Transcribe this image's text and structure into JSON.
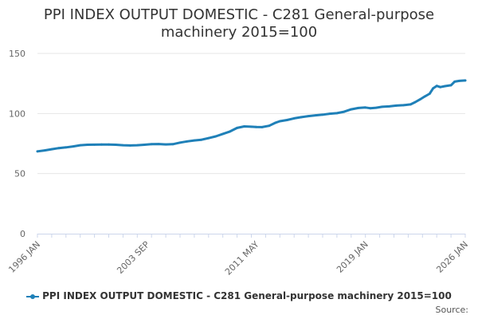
{
  "title_lines": [
    "PPI INDEX OUTPUT DOMESTIC - C281 General-purpose",
    "machinery 2015=100"
  ],
  "source_label": "Source:",
  "colors": {
    "series": "#1f80b8",
    "grid": "#e6e6e6",
    "axis": "#ccd6eb",
    "text": "#333333",
    "tick_text": "#666666"
  },
  "chart_data": {
    "type": "line",
    "title": "PPI INDEX OUTPUT DOMESTIC - C281 General-purpose machinery 2015=100",
    "xlabel": "",
    "ylabel": "",
    "x_range": [
      "1996-01",
      "2026-01"
    ],
    "ylim": [
      0,
      150
    ],
    "y_ticks": [
      0,
      50,
      100,
      150
    ],
    "x_tick_labels": [
      {
        "label": "1996 JAN",
        "date": "1996-01"
      },
      {
        "label": "2003 SEP",
        "date": "2003-09"
      },
      {
        "label": "2011 MAY",
        "date": "2011-05"
      },
      {
        "label": "2019 JAN",
        "date": "2019-01"
      },
      {
        "label": "2026 JAN",
        "date": "2026-01"
      }
    ],
    "grid": true,
    "legend": "bottom",
    "series": [
      {
        "name": "PPI INDEX OUTPUT DOMESTIC - C281 General-purpose machinery 2015=100",
        "points": [
          [
            "1996-01",
            68.5
          ],
          [
            "1996-07",
            69.3
          ],
          [
            "1997-01",
            70.3
          ],
          [
            "1997-07",
            71.2
          ],
          [
            "1998-01",
            71.8
          ],
          [
            "1998-07",
            72.6
          ],
          [
            "1999-01",
            73.6
          ],
          [
            "1999-07",
            74.0
          ],
          [
            "2000-01",
            74.1
          ],
          [
            "2000-07",
            74.2
          ],
          [
            "2001-01",
            74.2
          ],
          [
            "2001-07",
            74.0
          ],
          [
            "2002-01",
            73.6
          ],
          [
            "2002-07",
            73.4
          ],
          [
            "2003-01",
            73.6
          ],
          [
            "2003-07",
            74.0
          ],
          [
            "2004-01",
            74.5
          ],
          [
            "2004-07",
            74.6
          ],
          [
            "2005-01",
            74.3
          ],
          [
            "2005-07",
            74.5
          ],
          [
            "2006-01",
            75.8
          ],
          [
            "2006-07",
            76.8
          ],
          [
            "2007-01",
            77.6
          ],
          [
            "2007-07",
            78.2
          ],
          [
            "2008-01",
            79.5
          ],
          [
            "2008-07",
            81.0
          ],
          [
            "2009-01",
            83.0
          ],
          [
            "2009-07",
            85.0
          ],
          [
            "2010-01",
            88.0
          ],
          [
            "2010-07",
            89.3
          ],
          [
            "2011-01",
            89.0
          ],
          [
            "2011-05",
            88.8
          ],
          [
            "2011-10",
            88.7
          ],
          [
            "2012-04",
            89.8
          ],
          [
            "2012-09",
            92.2
          ],
          [
            "2013-01",
            93.6
          ],
          [
            "2013-07",
            94.6
          ],
          [
            "2014-01",
            96.0
          ],
          [
            "2014-07",
            97.0
          ],
          [
            "2015-01",
            97.8
          ],
          [
            "2015-07",
            98.5
          ],
          [
            "2016-01",
            99.0
          ],
          [
            "2016-07",
            99.8
          ],
          [
            "2017-01",
            100.3
          ],
          [
            "2017-07",
            101.5
          ],
          [
            "2018-01",
            103.5
          ],
          [
            "2018-07",
            104.6
          ],
          [
            "2019-01",
            105.0
          ],
          [
            "2019-05",
            104.4
          ],
          [
            "2019-10",
            104.8
          ],
          [
            "2020-03",
            105.6
          ],
          [
            "2020-09",
            105.9
          ],
          [
            "2021-03",
            106.6
          ],
          [
            "2021-09",
            106.9
          ],
          [
            "2022-03",
            107.6
          ],
          [
            "2022-07",
            109.5
          ],
          [
            "2022-11",
            111.8
          ],
          [
            "2023-03",
            114.2
          ],
          [
            "2023-07",
            116.5
          ],
          [
            "2023-10",
            121.0
          ],
          [
            "2024-01",
            123.0
          ],
          [
            "2024-04",
            122.0
          ],
          [
            "2024-08",
            122.8
          ],
          [
            "2025-01",
            123.5
          ],
          [
            "2025-04",
            126.5
          ],
          [
            "2025-08",
            127.2
          ],
          [
            "2026-01",
            127.5
          ]
        ]
      }
    ]
  }
}
